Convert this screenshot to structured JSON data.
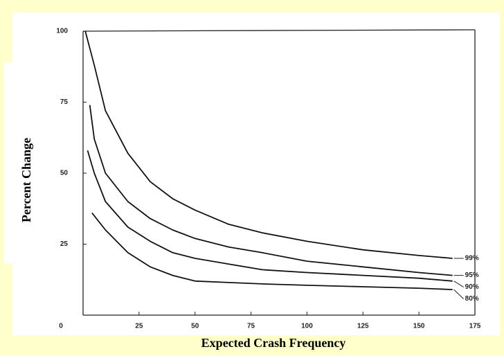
{
  "chart_data": {
    "type": "line",
    "x_label": "Expected Crash Frequency",
    "y_label": "Percent Change",
    "xlim": [
      0,
      175
    ],
    "xticks": [
      0,
      25,
      50,
      75,
      100,
      125,
      150,
      175
    ],
    "ylim": [
      0,
      100
    ],
    "yticks": [
      25,
      50,
      75,
      100
    ],
    "grid": false,
    "series": [
      {
        "name": "99%",
        "color": "#111111",
        "x": [
          1,
          5,
          10,
          20,
          30,
          40,
          50,
          65,
          80,
          100,
          125,
          150,
          165
        ],
        "values": [
          100,
          88,
          72,
          57,
          47,
          41,
          37,
          32,
          29,
          26,
          23,
          21,
          20
        ]
      },
      {
        "name": "95%",
        "color": "#111111",
        "x": [
          3,
          5,
          10,
          20,
          30,
          40,
          50,
          65,
          80,
          100,
          125,
          150,
          165
        ],
        "values": [
          74,
          62,
          50,
          40,
          34,
          30,
          27,
          24,
          22,
          19,
          17,
          15,
          14
        ]
      },
      {
        "name": "90%",
        "color": "#111111",
        "x": [
          2,
          5,
          10,
          20,
          30,
          40,
          50,
          65,
          80,
          100,
          125,
          150,
          165
        ],
        "values": [
          58,
          50,
          40,
          31,
          26,
          22,
          20,
          18,
          16,
          15,
          14,
          13,
          12
        ]
      },
      {
        "name": "80%",
        "color": "#111111",
        "x": [
          4,
          10,
          20,
          30,
          40,
          50,
          65,
          80,
          100,
          125,
          150,
          165
        ],
        "values": [
          36,
          30,
          22,
          17,
          14,
          12,
          11.5,
          11,
          10.5,
          10,
          9.5,
          9
        ]
      }
    ]
  }
}
